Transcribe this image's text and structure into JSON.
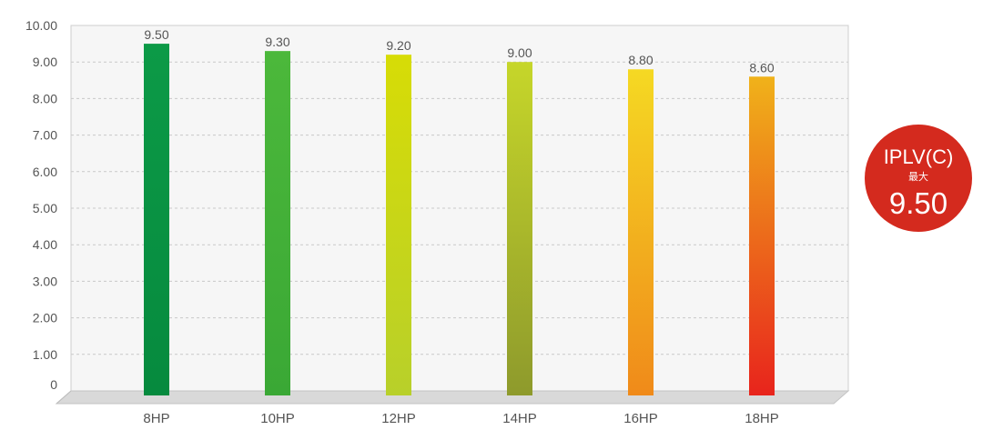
{
  "chart_data": {
    "type": "bar",
    "categories": [
      "8HP",
      "10HP",
      "12HP",
      "14HP",
      "16HP",
      "18HP"
    ],
    "values": [
      9.5,
      9.3,
      9.2,
      9.0,
      8.8,
      8.6
    ],
    "value_labels": [
      "9.50",
      "9.30",
      "9.20",
      "9.00",
      "8.80",
      "8.60"
    ],
    "ylim": [
      0,
      10
    ],
    "yticks": [
      "0",
      "1.00",
      "2.00",
      "3.00",
      "4.00",
      "5.00",
      "6.00",
      "7.00",
      "8.00",
      "9.00",
      "10.00"
    ],
    "grid": true,
    "bar_colors": [
      [
        "#0c9a47",
        "#068a3e"
      ],
      [
        "#4cb83b",
        "#3aa835"
      ],
      [
        "#d7dc06",
        "#b8d02a"
      ],
      [
        "#c6d62a",
        "#8e9a2c"
      ],
      [
        "#f5d923",
        "#f08a1a"
      ],
      [
        "#f0b21a",
        "#e8241c"
      ]
    ]
  },
  "badge": {
    "title": "IPLV(C)",
    "subtitle": "最大",
    "value": "9.50",
    "color": "#d42a1e"
  }
}
